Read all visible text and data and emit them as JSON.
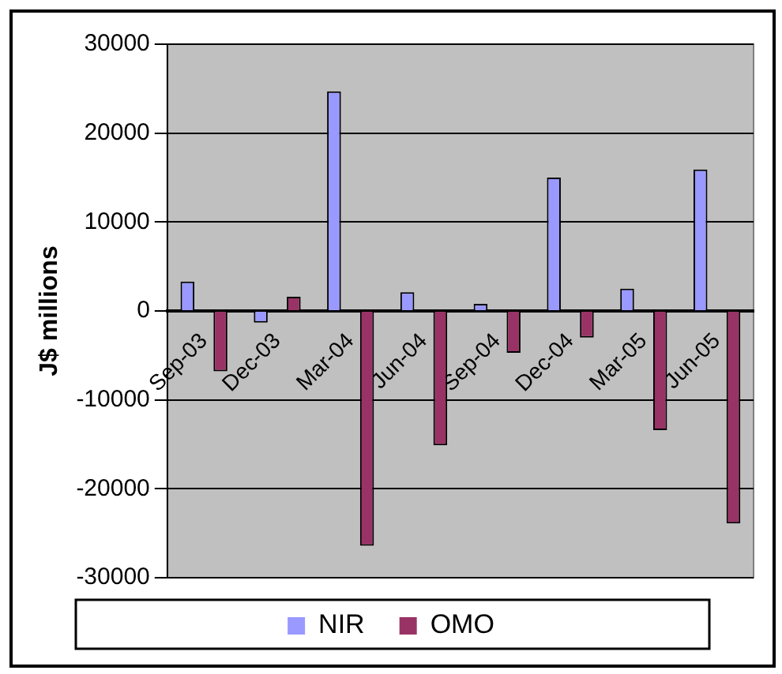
{
  "chart_data": {
    "type": "bar",
    "ylabel": "J$ millions",
    "categories": [
      "Sep-03",
      "Dec-03",
      "Mar-04",
      "Jun-04",
      "Sep-04",
      "Dec-04",
      "Mar-05",
      "Jun-05"
    ],
    "series": [
      {
        "name": "NIR",
        "color": "#9999ff",
        "values": [
          3300,
          -1300,
          24700,
          2100,
          800,
          15000,
          2500,
          15900
        ]
      },
      {
        "name": "OMO",
        "color": "#993366",
        "values": [
          -6800,
          1600,
          -26400,
          -15100,
          -4700,
          -3000,
          -13400,
          -23900
        ]
      }
    ],
    "ylim": [
      -30000,
      30000
    ],
    "yticks": [
      -30000,
      -20000,
      -10000,
      0,
      10000,
      20000,
      30000
    ],
    "grid": "y",
    "legend": "bottom"
  }
}
